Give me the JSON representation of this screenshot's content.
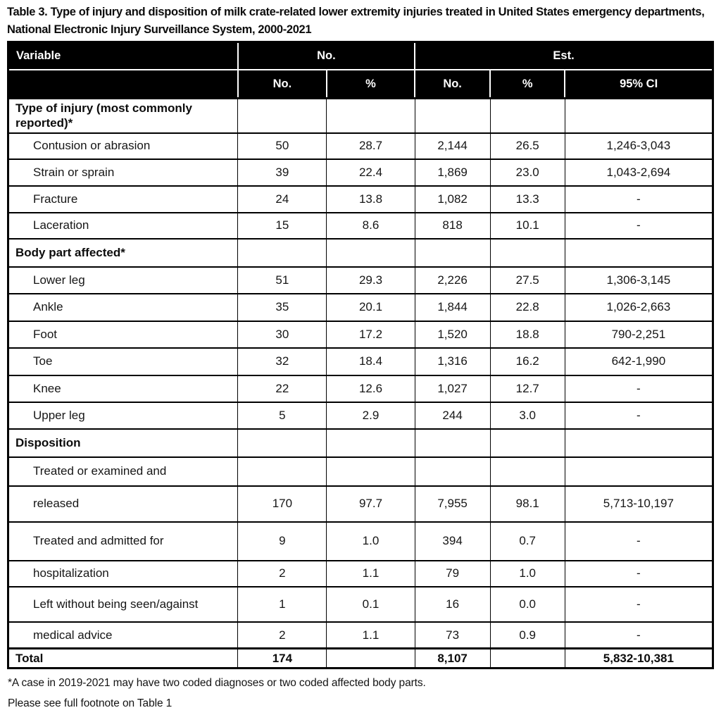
{
  "page_title": "Table 3. Type of injury and disposition of milk crate-related lower extremity injuries treated in United States emergency departments, National Electronic Injury Surveillance System, 2000-2021",
  "table": {
    "header_row1": {
      "variable": "Variable",
      "no_group": "No.",
      "est_group": "Est."
    },
    "header_row2": {
      "col1": "",
      "no_no": "No.",
      "no_pct": "%",
      "est_no": "No.",
      "est_pct": "%",
      "est_ci": "95% CI"
    },
    "rows": [
      {
        "type": "section",
        "label": "Type of injury (most commonly reported)*",
        "cells": [
          "",
          "",
          "",
          "",
          ""
        ]
      },
      {
        "type": "data",
        "label": "Contusion or abrasion",
        "cells": [
          "50",
          "28.7",
          "2,144",
          "26.5",
          "1,246-3,043"
        ]
      },
      {
        "type": "data",
        "label": "Strain or sprain",
        "cells": [
          "39",
          "22.4",
          "1,869",
          "23.0",
          "1,043-2,694"
        ]
      },
      {
        "type": "data",
        "label": "Fracture",
        "cells": [
          "24",
          "13.8",
          "1,082",
          "13.3",
          "-"
        ]
      },
      {
        "type": "data",
        "label": "Laceration",
        "cells": [
          "15",
          "8.6",
          "818",
          "10.1",
          "-"
        ]
      },
      {
        "type": "section",
        "label": "Body part affected*",
        "cells": [
          "",
          "",
          "",
          "",
          ""
        ]
      },
      {
        "type": "data",
        "label": "Lower leg",
        "cells": [
          "51",
          "29.3",
          "2,226",
          "27.5",
          "1,306-3,145"
        ]
      },
      {
        "type": "data",
        "label": "Ankle",
        "cells": [
          "35",
          "20.1",
          "1,844",
          "22.8",
          "1,026-2,663"
        ]
      },
      {
        "type": "data",
        "label": "Foot",
        "cells": [
          "30",
          "17.2",
          "1,520",
          "18.8",
          "790-2,251"
        ]
      },
      {
        "type": "data",
        "label": "Toe",
        "cells": [
          "32",
          "18.4",
          "1,316",
          "16.2",
          "642-1,990"
        ]
      },
      {
        "type": "data",
        "label": "Knee",
        "cells": [
          "22",
          "12.6",
          "1,027",
          "12.7",
          "-"
        ]
      },
      {
        "type": "data",
        "label": "Upper leg",
        "cells": [
          "5",
          "2.9",
          "244",
          "3.0",
          "-"
        ]
      },
      {
        "type": "section",
        "label": "Disposition",
        "cells": [
          "",
          "",
          "",
          "",
          ""
        ]
      },
      {
        "type": "data",
        "label": "Treated or examined and",
        "cells": [
          "",
          "",
          "",
          "",
          ""
        ]
      },
      {
        "type": "data",
        "label": "released",
        "cells": [
          "170",
          "97.7",
          "7,955",
          "98.1",
          "5,713-10,197"
        ]
      },
      {
        "type": "data",
        "label": "Treated and admitted for",
        "cells": [
          "9",
          "1.0",
          "394",
          "0.7",
          "-"
        ]
      },
      {
        "type": "data",
        "label": "hospitalization",
        "cells": [
          "2",
          "1.1",
          "79",
          "1.0",
          "-"
        ]
      },
      {
        "type": "data",
        "label": "Left without being seen/against",
        "cells": [
          "1",
          "0.1",
          "16",
          "0.0",
          "-"
        ]
      },
      {
        "type": "data",
        "label": "medical advice",
        "cells": [
          "2",
          "1.1",
          "73",
          "0.9",
          "-"
        ]
      },
      {
        "type": "total",
        "label": "Total",
        "cells": [
          "174",
          "",
          "8,107",
          "",
          "5,832-10,381"
        ]
      }
    ]
  },
  "footnotes": [
    "*A case in 2019-2021 may have two coded diagnoses or two coded affected body parts.",
    "Please see full footnote on Table 1"
  ],
  "colors": {
    "header_bg": "#000000",
    "header_text": "#ffffff",
    "body_text": "#161616",
    "border": "#000000",
    "background": "#ffffff"
  }
}
